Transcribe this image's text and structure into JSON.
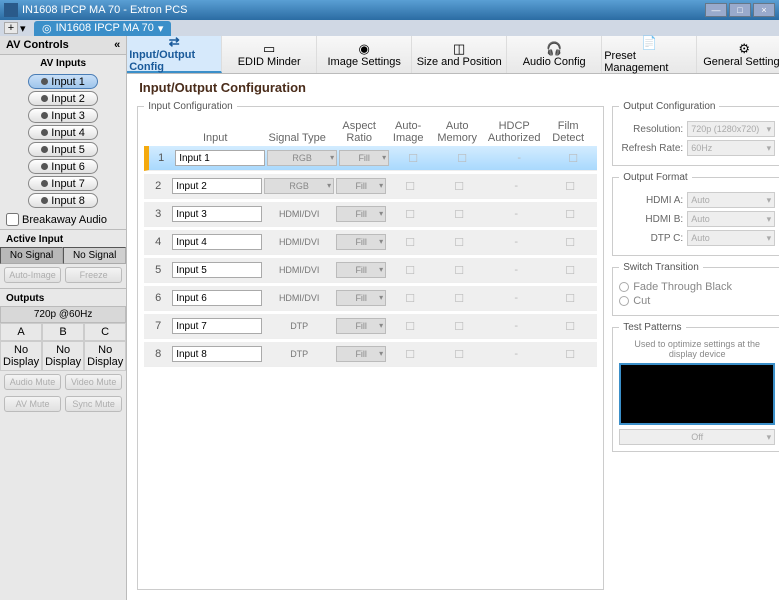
{
  "window": {
    "title": "IN1608 IPCP MA 70 - Extron PCS",
    "min": "—",
    "max": "□",
    "close": "×"
  },
  "docTab": {
    "plus": "+",
    "label": "IN1608 IPCP MA 70",
    "drop": "▾"
  },
  "sidebar": {
    "header": "AV Controls",
    "collapse": "«",
    "inputs_title": "AV Inputs",
    "input_btns": [
      "Input 1",
      "Input 2",
      "Input 3",
      "Input 4",
      "Input 5",
      "Input 6",
      "Input 7",
      "Input 8"
    ],
    "selected_input": 0,
    "breakaway": "Breakaway Audio",
    "active_input": {
      "label": "Active Input",
      "a": "No Signal",
      "b": "No Signal",
      "auto": "Auto-Image",
      "freeze": "Freeze"
    },
    "outputs": {
      "label": "Outputs",
      "rate": "720p @60Hz",
      "cols": [
        "A",
        "B",
        "C"
      ],
      "vals": [
        "No Display",
        "No Display",
        "No Display"
      ],
      "btns": [
        "Audio Mute",
        "Video Mute",
        "AV Mute",
        "Sync Mute"
      ]
    }
  },
  "toolbar": [
    {
      "label": "Input/Output Config",
      "icon": "⇄"
    },
    {
      "label": "EDID Minder",
      "icon": "▭"
    },
    {
      "label": "Image Settings",
      "icon": "◉"
    },
    {
      "label": "Size and Position",
      "icon": "◫"
    },
    {
      "label": "Audio Config",
      "icon": "🎧"
    },
    {
      "label": "Preset Management",
      "icon": "📄"
    },
    {
      "label": "General Settings",
      "icon": "⚙"
    }
  ],
  "active_tool": 0,
  "page": {
    "title": "Input/Output Configuration"
  },
  "input_fs": {
    "legend": "Input Configuration",
    "headers": [
      "",
      "Input",
      "Signal Type",
      "Aspect Ratio",
      "Auto-Image",
      "Auto Memory",
      "HDCP Authorized",
      "Film Detect"
    ],
    "rows": [
      {
        "n": "1",
        "name": "Input 1",
        "sig": "RGB",
        "ar": "Fill",
        "hl": true
      },
      {
        "n": "2",
        "name": "Input 2",
        "sig": "RGB",
        "ar": "Fill",
        "hl": false
      },
      {
        "n": "3",
        "name": "Input 3",
        "sig": "HDMI/DVI",
        "ar": "Fill",
        "hl": false
      },
      {
        "n": "4",
        "name": "Input 4",
        "sig": "HDMI/DVI",
        "ar": "Fill",
        "hl": false
      },
      {
        "n": "5",
        "name": "Input 5",
        "sig": "HDMI/DVI",
        "ar": "Fill",
        "hl": false
      },
      {
        "n": "6",
        "name": "Input 6",
        "sig": "HDMI/DVI",
        "ar": "Fill",
        "hl": false
      },
      {
        "n": "7",
        "name": "Input 7",
        "sig": "DTP",
        "ar": "Fill",
        "hl": false
      },
      {
        "n": "8",
        "name": "Input 8",
        "sig": "DTP",
        "ar": "Fill",
        "hl": false
      }
    ]
  },
  "output_fs": {
    "legend": "Output Configuration",
    "resolution_l": "Resolution:",
    "resolution_v": "720p (1280x720)",
    "refresh_l": "Refresh Rate:",
    "refresh_v": "60Hz"
  },
  "format_fs": {
    "legend": "Output Format",
    "hdmia_l": "HDMI A:",
    "hdmia_v": "Auto",
    "hdmib_l": "HDMI B:",
    "hdmib_v": "Auto",
    "dtpc_l": "DTP C:",
    "dtpc_v": "Auto"
  },
  "switch_fs": {
    "legend": "Switch Transition",
    "fade": "Fade Through Black",
    "cut": "Cut"
  },
  "test_fs": {
    "legend": "Test Patterns",
    "note": "Used to optimize settings at the display device",
    "sel": "Off"
  }
}
